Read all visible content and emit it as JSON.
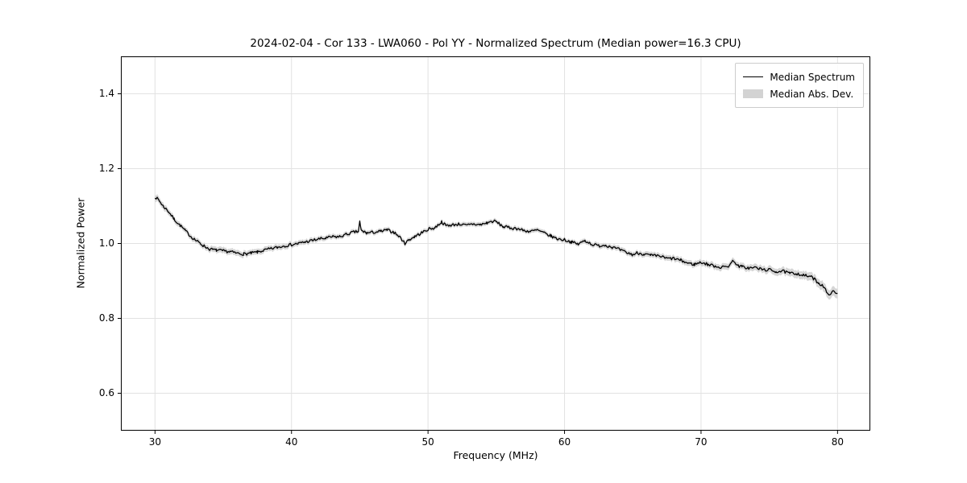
{
  "chart_data": {
    "type": "line",
    "title": "2024-02-04 - Cor 133 - LWA060 - Pol YY - Normalized Spectrum (Median power=16.3 CPU)",
    "xlabel": "Frequency (MHz)",
    "ylabel": "Normalized Power",
    "xlim": [
      27.5,
      82.4
    ],
    "ylim": [
      0.5,
      1.5
    ],
    "x_ticks": [
      30,
      40,
      50,
      60,
      70,
      80
    ],
    "y_ticks": [
      0.6,
      0.8,
      1.0,
      1.2,
      1.4
    ],
    "grid": true,
    "legend": [
      "Median Spectrum",
      "Median Abs. Dev."
    ],
    "legend_position": "upper right",
    "line_color": "#000000",
    "band_color": "#d6d6d6",
    "grid_color": "#e2e2e2",
    "noise_amplitude": 0.004,
    "noise_seed": 7,
    "median_spectrum": [
      [
        30.0,
        1.125
      ],
      [
        30.3,
        1.115
      ],
      [
        30.6,
        1.1
      ],
      [
        31.0,
        1.085
      ],
      [
        31.4,
        1.065
      ],
      [
        31.8,
        1.05
      ],
      [
        32.2,
        1.035
      ],
      [
        32.6,
        1.02
      ],
      [
        33.0,
        1.008
      ],
      [
        33.5,
        0.995
      ],
      [
        34.0,
        0.985
      ],
      [
        34.5,
        0.982
      ],
      [
        35.0,
        0.98
      ],
      [
        35.5,
        0.978
      ],
      [
        36.0,
        0.974
      ],
      [
        36.5,
        0.972
      ],
      [
        37.0,
        0.974
      ],
      [
        37.5,
        0.977
      ],
      [
        38.0,
        0.982
      ],
      [
        38.5,
        0.986
      ],
      [
        39.0,
        0.99
      ],
      [
        39.5,
        0.994
      ],
      [
        40.0,
        0.997
      ],
      [
        40.5,
        1.0
      ],
      [
        41.0,
        1.004
      ],
      [
        41.5,
        1.008
      ],
      [
        42.0,
        1.012
      ],
      [
        42.5,
        1.014
      ],
      [
        43.0,
        1.018
      ],
      [
        43.5,
        1.018
      ],
      [
        44.0,
        1.024
      ],
      [
        44.5,
        1.03
      ],
      [
        44.9,
        1.032
      ],
      [
        45.0,
        1.058
      ],
      [
        45.1,
        1.035
      ],
      [
        45.5,
        1.028
      ],
      [
        46.0,
        1.03
      ],
      [
        46.5,
        1.032
      ],
      [
        47.0,
        1.036
      ],
      [
        47.5,
        1.03
      ],
      [
        48.0,
        1.015
      ],
      [
        48.3,
        1.0
      ],
      [
        48.6,
        1.01
      ],
      [
        49.0,
        1.018
      ],
      [
        49.5,
        1.028
      ],
      [
        50.0,
        1.038
      ],
      [
        50.5,
        1.042
      ],
      [
        51.0,
        1.058
      ],
      [
        51.3,
        1.048
      ],
      [
        51.8,
        1.05
      ],
      [
        52.3,
        1.052
      ],
      [
        52.8,
        1.048
      ],
      [
        53.3,
        1.052
      ],
      [
        53.8,
        1.05
      ],
      [
        54.3,
        1.055
      ],
      [
        54.8,
        1.06
      ],
      [
        55.0,
        1.058
      ],
      [
        55.5,
        1.045
      ],
      [
        56.0,
        1.042
      ],
      [
        56.5,
        1.04
      ],
      [
        57.0,
        1.035
      ],
      [
        57.5,
        1.032
      ],
      [
        58.0,
        1.036
      ],
      [
        58.5,
        1.028
      ],
      [
        59.0,
        1.02
      ],
      [
        59.5,
        1.012
      ],
      [
        60.0,
        1.01
      ],
      [
        60.5,
        1.004
      ],
      [
        61.0,
        0.998
      ],
      [
        61.5,
        1.008
      ],
      [
        62.0,
        0.998
      ],
      [
        62.5,
        0.994
      ],
      [
        63.0,
        0.996
      ],
      [
        63.5,
        0.99
      ],
      [
        64.0,
        0.984
      ],
      [
        64.5,
        0.976
      ],
      [
        65.0,
        0.97
      ],
      [
        65.3,
        0.975
      ],
      [
        65.8,
        0.972
      ],
      [
        66.3,
        0.968
      ],
      [
        67.0,
        0.966
      ],
      [
        67.5,
        0.96
      ],
      [
        68.0,
        0.96
      ],
      [
        68.5,
        0.955
      ],
      [
        69.0,
        0.948
      ],
      [
        69.5,
        0.944
      ],
      [
        70.0,
        0.95
      ],
      [
        70.5,
        0.944
      ],
      [
        71.0,
        0.94
      ],
      [
        71.5,
        0.936
      ],
      [
        72.0,
        0.94
      ],
      [
        72.4,
        0.955
      ],
      [
        72.7,
        0.94
      ],
      [
        73.0,
        0.938
      ],
      [
        73.5,
        0.934
      ],
      [
        74.0,
        0.936
      ],
      [
        74.5,
        0.93
      ],
      [
        75.0,
        0.93
      ],
      [
        75.5,
        0.925
      ],
      [
        76.0,
        0.926
      ],
      [
        76.5,
        0.92
      ],
      [
        77.0,
        0.92
      ],
      [
        77.5,
        0.915
      ],
      [
        78.0,
        0.912
      ],
      [
        78.3,
        0.905
      ],
      [
        78.6,
        0.895
      ],
      [
        79.0,
        0.885
      ],
      [
        79.3,
        0.862
      ],
      [
        79.6,
        0.872
      ],
      [
        80.0,
        0.865
      ]
    ],
    "median_abs_dev": [
      [
        30,
        0.009
      ],
      [
        32,
        0.007
      ],
      [
        35,
        0.008
      ],
      [
        40,
        0.007
      ],
      [
        45,
        0.006
      ],
      [
        50,
        0.006
      ],
      [
        55,
        0.006
      ],
      [
        60,
        0.006
      ],
      [
        65,
        0.007
      ],
      [
        70,
        0.008
      ],
      [
        75,
        0.009
      ],
      [
        78,
        0.011
      ],
      [
        80,
        0.013
      ]
    ]
  }
}
